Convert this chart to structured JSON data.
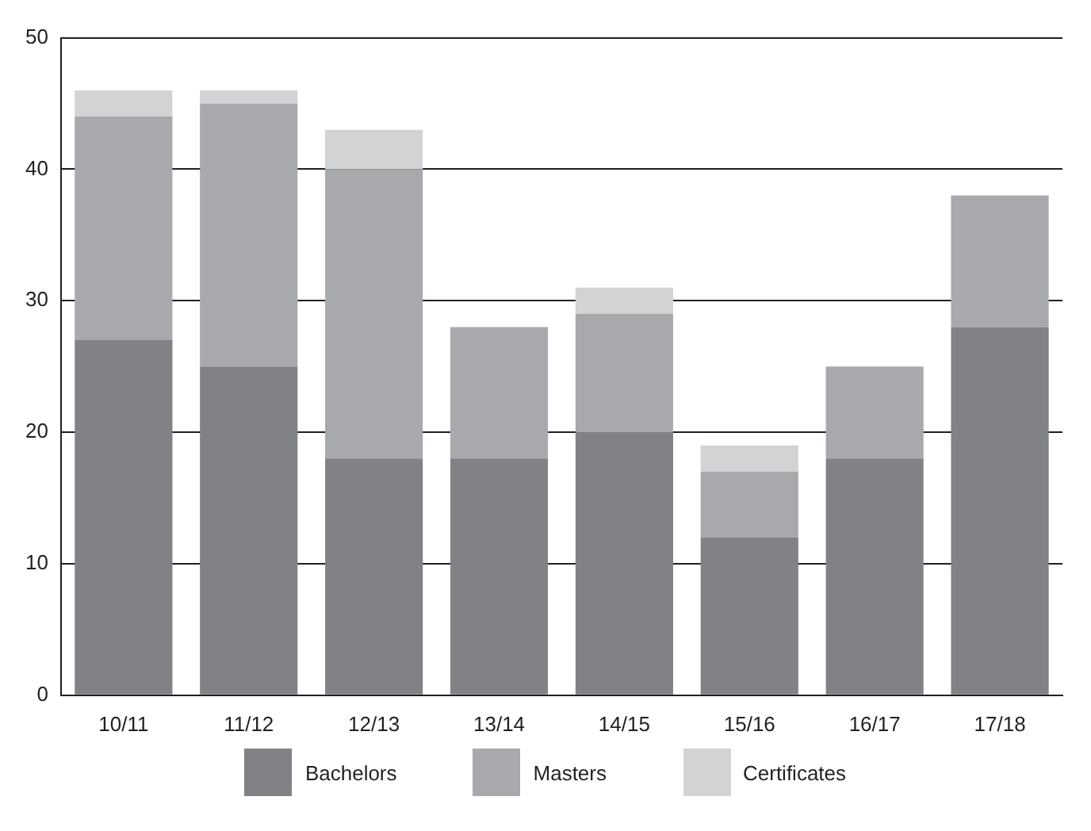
{
  "chart_data": {
    "type": "bar",
    "stacked": true,
    "categories": [
      "10/11",
      "11/12",
      "12/13",
      "13/14",
      "14/15",
      "15/16",
      "16/17",
      "17/18"
    ],
    "series": [
      {
        "name": "Bachelors",
        "color": "#808285",
        "values": [
          27,
          25,
          18,
          18,
          20,
          12,
          18,
          28
        ]
      },
      {
        "name": "Masters",
        "color": "#a7a9ac",
        "values": [
          17,
          20,
          22,
          10,
          9,
          5,
          7,
          10
        ]
      },
      {
        "name": "Certificates",
        "color": "#d1d3d4",
        "values": [
          2,
          1,
          3,
          0,
          2,
          2,
          0,
          0
        ]
      }
    ],
    "ylim": [
      0,
      50
    ],
    "yticks": [
      0,
      10,
      20,
      30,
      40,
      50
    ],
    "grid": "y",
    "legend": "bottom"
  }
}
